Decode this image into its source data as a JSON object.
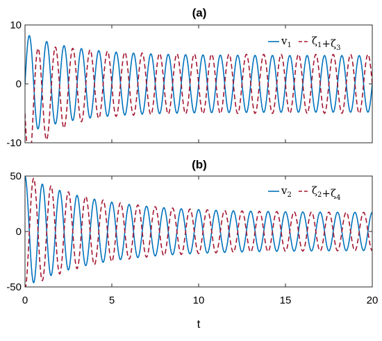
{
  "chart_data": [
    {
      "type": "line",
      "title": "(a)",
      "xlabel": "",
      "ylabel": "",
      "xlim": [
        0,
        20
      ],
      "ylim": [
        -10,
        10
      ],
      "xticks": [],
      "yticks": [
        "10",
        "0",
        "-10"
      ],
      "grid": false,
      "legend_position": "top-right",
      "legend": [
        {
          "main": "v",
          "sub": "1",
          "style": "solid"
        },
        {
          "parts": [
            {
              "main": "ζ",
              "sub": "1"
            },
            {
              "main": "+ζ",
              "sub": "3"
            }
          ],
          "style": "dashed"
        }
      ],
      "series": [
        {
          "color": "#0072BD",
          "dash": "solid",
          "frequency": 1.0,
          "phase": 0.0,
          "amplitude_start": 8.5,
          "amplitude_end": 4.8,
          "decay_rate": 0.35,
          "mean_start": 0.0,
          "mean_decay": 0.0
        },
        {
          "color": "#A2142F",
          "dash": "dashed",
          "frequency": 1.0,
          "phase": 3.1416,
          "amplitude_start": 10.0,
          "amplitude_end": 5.0,
          "decay_rate": 0.45,
          "mean_start": -5.0,
          "mean_decay": 0.9
        }
      ]
    },
    {
      "type": "line",
      "title": "(b)",
      "xlabel": "t",
      "ylabel": "",
      "xlim": [
        0,
        20
      ],
      "ylim": [
        -50,
        50
      ],
      "xticks": [
        "0",
        "5",
        "10",
        "15",
        "20"
      ],
      "yticks": [
        "50",
        "0",
        "-50"
      ],
      "grid": false,
      "legend_position": "top-right",
      "legend": [
        {
          "main": "v",
          "sub": "2",
          "style": "solid"
        },
        {
          "parts": [
            {
              "main": "ζ",
              "sub": "2"
            },
            {
              "main": "+ζ",
              "sub": "4"
            }
          ],
          "style": "dashed"
        }
      ],
      "series": [
        {
          "color": "#0072BD",
          "dash": "solid",
          "frequency": 1.0,
          "phase": 1.5708,
          "amplitude_start": 50.0,
          "amplitude_end": 17.0,
          "decay_rate": 0.25,
          "mean_start": 0.0,
          "mean_decay": 0.0
        },
        {
          "color": "#A2142F",
          "dash": "dashed",
          "frequency": 1.0,
          "phase": 4.7124,
          "amplitude_start": 52.0,
          "amplitude_end": 17.0,
          "decay_rate": 0.25,
          "mean_start": 0.0,
          "mean_decay": 0.0
        }
      ]
    }
  ]
}
